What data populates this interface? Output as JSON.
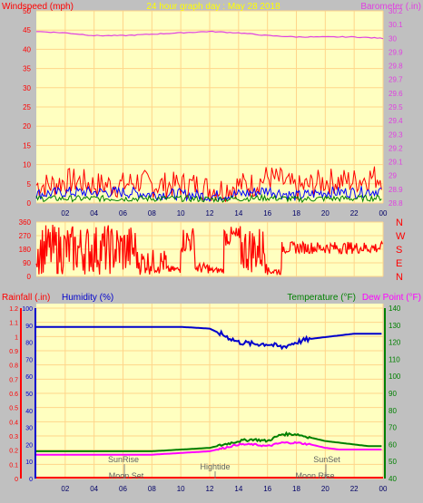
{
  "header": {
    "left_label": "Windspeed (mph)",
    "center_label": "24 hour graph day : May 28 2018",
    "right_label": "Barometer (.in)"
  },
  "x_ticks": [
    "02",
    "04",
    "06",
    "08",
    "10",
    "12",
    "14",
    "16",
    "18",
    "20",
    "22",
    "00"
  ],
  "colors": {
    "background": "#c0c0c0",
    "plot_bg": "#ffffc0",
    "grid": "#ffd58a",
    "windspeed": "#ff0000",
    "wind_avg": "#0000ff",
    "wind_low": "#008000",
    "barometer": "#e040e0",
    "direction": "#ff0000",
    "humidity": "#0000cc",
    "temperature": "#008000",
    "dewpoint": "#ff00ff",
    "rainfall": "#ff0000",
    "header_center": "#ffff00"
  },
  "panel_wind": {
    "left_axis_ticks": [
      "0",
      "5",
      "10",
      "15",
      "20",
      "25",
      "30",
      "35",
      "40",
      "45",
      "50"
    ],
    "right_axis_ticks": [
      "28.8",
      "28.9",
      "29",
      "29.1",
      "29.2",
      "29.3",
      "29.4",
      "29.5",
      "29.6",
      "29.7",
      "29.8",
      "29.9",
      "30",
      "30.1",
      "30.2"
    ]
  },
  "panel_direction": {
    "left_axis_ticks": [
      "0",
      "90",
      "180",
      "270",
      "360"
    ],
    "compass_labels": [
      "N",
      "W",
      "S",
      "E",
      "N"
    ]
  },
  "panel_env": {
    "rain_label": "Rainfall (.in)",
    "humidity_label": "Humidity (%)",
    "temperature_label": "Temperature (°F)",
    "dewpoint_label": "Dew Point (°F)",
    "left_rain_ticks": [
      "0",
      "0.1",
      "0.2",
      "0.3",
      "0.4",
      "0.5",
      "0.6",
      "0.7",
      "0.8",
      "0.9",
      "1",
      "1.1",
      "1.2"
    ],
    "left_hum_ticks": [
      "0",
      "10",
      "20",
      "30",
      "40",
      "50",
      "60",
      "70",
      "80",
      "90",
      "100"
    ],
    "right_temp_ticks": [
      "40",
      "50",
      "60",
      "70",
      "80",
      "90",
      "100",
      "110",
      "120",
      "130",
      "140"
    ],
    "events": {
      "sunrise": "SunRise",
      "sunset": "SunSet",
      "moonset": "Moon Set",
      "moonrise": "Moon Rise",
      "hightide": "Hightide"
    }
  },
  "chart_data": [
    {
      "type": "line",
      "title": "24 hour graph day : May 28 2018",
      "x_unit": "hour",
      "xlim": [
        0,
        24
      ],
      "ylabel": "Windspeed (mph)",
      "ylim": [
        0,
        50
      ],
      "y2label": "Barometer (.in)",
      "y2lim": [
        28.8,
        30.2
      ],
      "series": [
        {
          "name": "Windspeed",
          "axis": "left",
          "x": [
            0,
            1,
            2,
            3,
            4,
            5,
            6,
            7,
            8,
            9,
            10,
            11,
            12,
            13,
            14,
            15,
            16,
            17,
            18,
            19,
            20,
            21,
            22,
            23,
            24
          ],
          "values": [
            4,
            4,
            5,
            5,
            4,
            4,
            4,
            5,
            4,
            4,
            4,
            4,
            3,
            3,
            4,
            4,
            6,
            5,
            3,
            4,
            5,
            5,
            5,
            6,
            6
          ]
        },
        {
          "name": "Windspeed average",
          "axis": "left",
          "x": [
            0,
            2,
            4,
            6,
            8,
            10,
            12,
            14,
            16,
            18,
            20,
            22,
            24
          ],
          "values": [
            2,
            2.5,
            2.5,
            2.5,
            2,
            2,
            1.5,
            2,
            3,
            1.5,
            2.5,
            2.5,
            3
          ]
        },
        {
          "name": "Windspeed low",
          "axis": "left",
          "x": [
            0,
            2,
            4,
            6,
            8,
            10,
            12,
            14,
            16,
            18,
            20,
            22,
            24
          ],
          "values": [
            1,
            1,
            1,
            1,
            1,
            1,
            0.8,
            1,
            1.2,
            0.8,
            1,
            1,
            1.2
          ]
        },
        {
          "name": "Barometer",
          "axis": "right",
          "x": [
            0,
            2,
            4,
            6,
            8,
            10,
            12,
            14,
            16,
            18,
            20,
            22,
            24
          ],
          "values": [
            30.05,
            30.04,
            30.02,
            30.02,
            30.03,
            30.04,
            30.05,
            30.04,
            30.02,
            30.01,
            30.01,
            30.01,
            30.0
          ]
        }
      ]
    },
    {
      "type": "scatter",
      "ylabel": "Wind direction (degrees)",
      "xlim": [
        0,
        24
      ],
      "ylim": [
        0,
        360
      ],
      "segments": [
        {
          "x": [
            0,
            7
          ],
          "low": 10,
          "high": 345
        },
        {
          "x": [
            7,
            9
          ],
          "low": 10,
          "high": 180
        },
        {
          "x": [
            9,
            10
          ],
          "low": 20,
          "high": 70
        },
        {
          "x": [
            10,
            11
          ],
          "low": 150,
          "high": 330
        },
        {
          "x": [
            11,
            12
          ],
          "low": 20,
          "high": 90
        },
        {
          "x": [
            12,
            13
          ],
          "low": 20,
          "high": 60
        },
        {
          "x": [
            13,
            14
          ],
          "low": 200,
          "high": 330
        },
        {
          "x": [
            14,
            16
          ],
          "low": 20,
          "high": 340
        },
        {
          "x": [
            16,
            17
          ],
          "low": 10,
          "high": 60
        },
        {
          "x": [
            17,
            24
          ],
          "low": 150,
          "high": 230
        }
      ]
    },
    {
      "type": "line",
      "xlim": [
        0,
        24
      ],
      "ylabel": "Humidity (%)",
      "ylim": [
        0,
        100
      ],
      "y2label": "Temperature (°F)",
      "y2lim": [
        40,
        140
      ],
      "series": [
        {
          "name": "Humidity",
          "axis": "left",
          "x": [
            0,
            2,
            4,
            6,
            8,
            10,
            12,
            13,
            14,
            15,
            16,
            17,
            18,
            19,
            20,
            21,
            22,
            23,
            24
          ],
          "values": [
            89,
            89,
            89,
            89,
            89,
            89,
            88,
            84,
            80,
            79,
            79,
            77,
            80,
            82,
            83,
            84,
            85,
            85,
            85
          ]
        },
        {
          "name": "Temperature",
          "axis": "right",
          "x": [
            0,
            2,
            4,
            6,
            8,
            10,
            12,
            13,
            14,
            15,
            16,
            17,
            18,
            19,
            20,
            21,
            22,
            23,
            24
          ],
          "values": [
            56,
            56,
            56,
            56,
            56,
            57,
            58,
            60,
            62,
            63,
            62,
            66,
            66,
            64,
            62,
            61,
            60,
            59,
            59
          ]
        },
        {
          "name": "Dew Point",
          "axis": "right",
          "x": [
            0,
            2,
            4,
            6,
            8,
            10,
            12,
            13,
            14,
            15,
            16,
            17,
            18,
            19,
            20,
            21,
            22,
            23,
            24
          ],
          "values": [
            54,
            54,
            54,
            54,
            54,
            55,
            56,
            58,
            60,
            60,
            59,
            61,
            61,
            60,
            58,
            57,
            57,
            57,
            57
          ]
        },
        {
          "name": "Rainfall",
          "axis": "left",
          "x": [
            0,
            24
          ],
          "values": [
            0,
            0
          ]
        }
      ]
    }
  ]
}
